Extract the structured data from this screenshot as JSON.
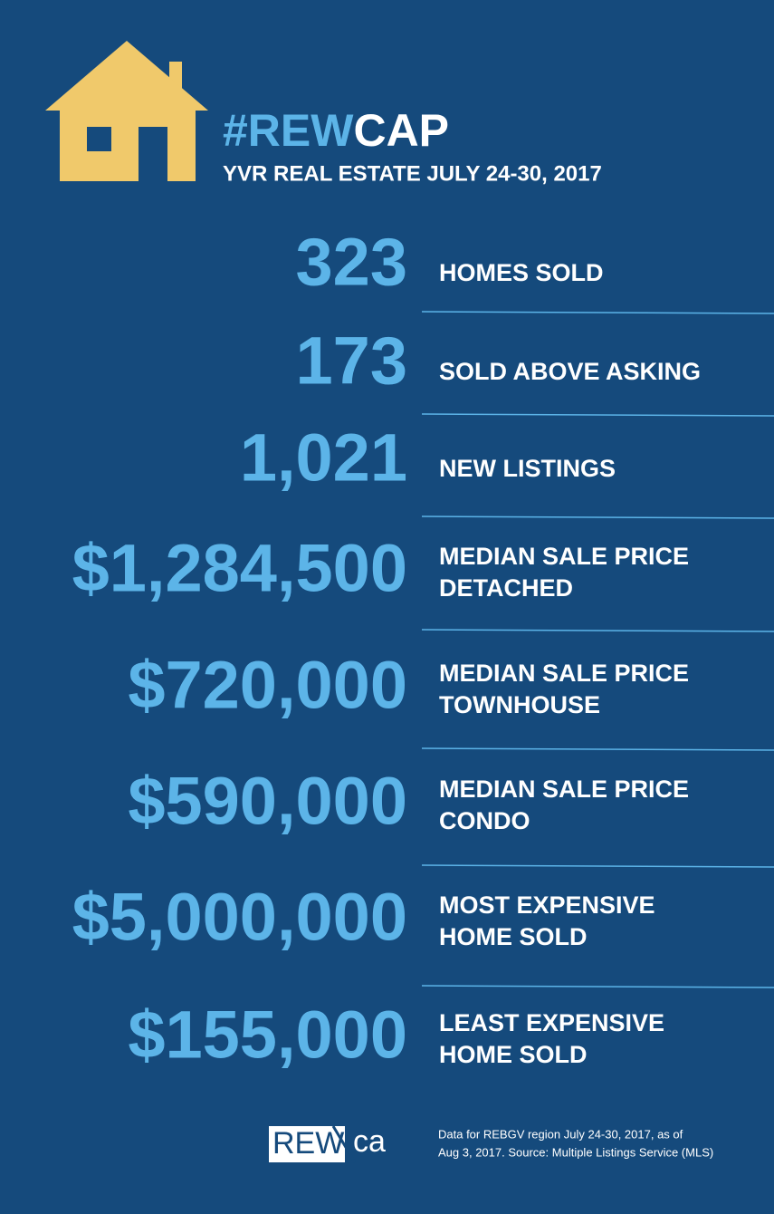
{
  "header": {
    "title_highlight": "#REW",
    "title_rest": "CAP",
    "subtitle": "YVR REAL ESTATE JULY 24-30, 2017"
  },
  "stats": [
    {
      "value": "323",
      "label": [
        "HOMES SOLD"
      ]
    },
    {
      "value": "173",
      "label": [
        "SOLD ABOVE ASKING"
      ]
    },
    {
      "value": "1,021",
      "label": [
        "NEW LISTINGS"
      ]
    },
    {
      "value": "$1,284,500",
      "label": [
        "MEDIAN SALE PRICE",
        "DETACHED"
      ]
    },
    {
      "value": "$720,000",
      "label": [
        "MEDIAN SALE PRICE",
        "TOWNHOUSE"
      ]
    },
    {
      "value": "$590,000",
      "label": [
        "MEDIAN SALE PRICE",
        "CONDO"
      ]
    },
    {
      "value": "$5,000,000",
      "label": [
        "MOST EXPENSIVE",
        "HOME SOLD"
      ]
    },
    {
      "value": "$155,000",
      "label": [
        "LEAST EXPENSIVE",
        "HOME SOLD"
      ]
    }
  ],
  "footer": {
    "logo_main": "REW",
    "logo_suffix": "ca",
    "note": [
      "Data for REBGV region July 24-30, 2017, as of",
      "Aug 3, 2017. Source: Multiple Listings Service (MLS)"
    ]
  }
}
